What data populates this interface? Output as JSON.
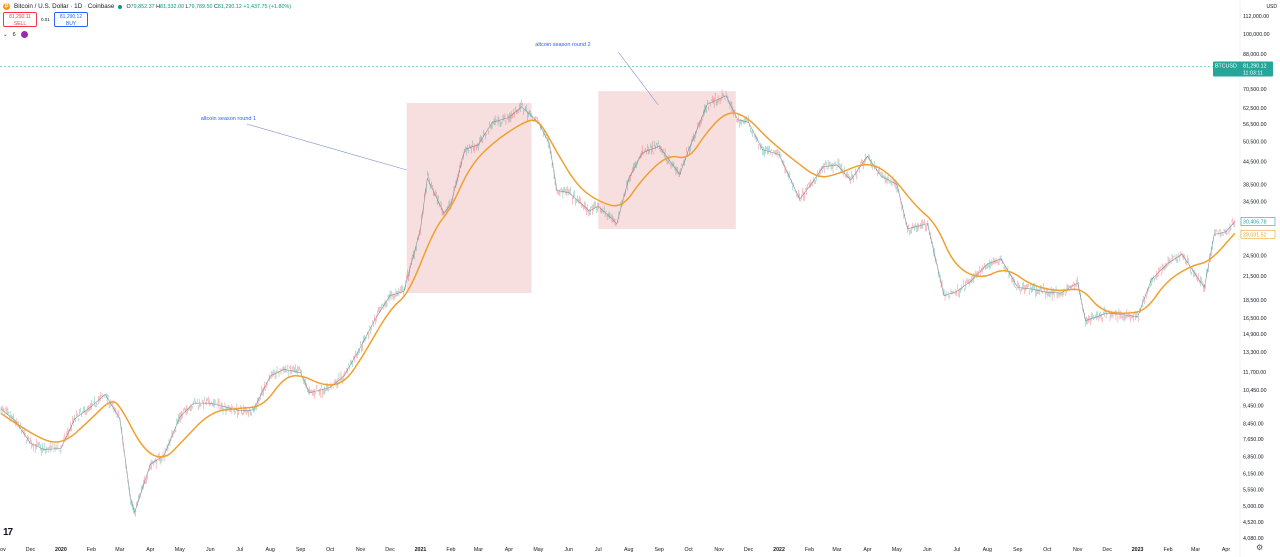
{
  "header": {
    "symbol_title": "Bitcoin / U.S. Dollar · 1D · Coinbase",
    "ohlc": [
      {
        "k": "O",
        "v": "79,852.37"
      },
      {
        "k": "H",
        "v": "81,332.00"
      },
      {
        "k": "L",
        "v": "79,789.50"
      },
      {
        "k": "C",
        "v": "81,290.12"
      }
    ],
    "change": "+1,437.75 (+1.80%)",
    "sell_price": "81,290.11",
    "sell_label": "SELL",
    "spread": "0.01",
    "buy_price": "81,290.12",
    "buy_label": "BUY",
    "indicator_count": "6",
    "currency": "USD"
  },
  "colors": {
    "up": "#089981",
    "down": "#f23645",
    "candle_gray": "#9aa0a6",
    "ma": "#f0a030",
    "zone": "#f2c9cc",
    "annotation_text": "#2962ff",
    "price_tag": "#26a69a"
  },
  "chart_data": {
    "type": "line",
    "scale": "log",
    "price_axis": {
      "ticks": [
        "112,000.00",
        "100,000.00",
        "88,000.00",
        "70,500.00",
        "62,500.00",
        "56,500.00",
        "50,500.00",
        "44,500.00",
        "38,500.00",
        "34,500.00",
        "30,500.00",
        "24,500.00",
        "21,500.00",
        "18,500.00",
        "16,500.00",
        "14,900.00",
        "13,300.00",
        "11,700.00",
        "10,450.00",
        "9,450.00",
        "8,450.00",
        "7,650.00",
        "6,850.00",
        "6,150.00",
        "5,550.00",
        "5,000.00",
        "4,520.00",
        "4,080.00"
      ],
      "tick_values": [
        112000,
        100000,
        88000,
        70500,
        62500,
        56500,
        50500,
        44500,
        38500,
        34500,
        30500,
        24500,
        21500,
        18500,
        16500,
        14900,
        13300,
        11700,
        10450,
        9450,
        8450,
        7650,
        6850,
        6150,
        5550,
        5000,
        4520,
        4080
      ],
      "range": [
        3950,
        118000
      ]
    },
    "time_axis": {
      "labels": [
        "Nov",
        "Dec",
        "2020",
        "Feb",
        "Mar",
        "Apr",
        "May",
        "Jun",
        "Jul",
        "Aug",
        "Sep",
        "Oct",
        "Nov",
        "Dec",
        "2021",
        "Feb",
        "Mar",
        "Apr",
        "May",
        "Jun",
        "Jul",
        "Aug",
        "Sep",
        "Oct",
        "Nov",
        "Dec",
        "2022",
        "Feb",
        "Mar",
        "Apr",
        "May",
        "Jun",
        "Jul",
        "Aug",
        "Sep",
        "Oct",
        "Nov",
        "Dec",
        "2023",
        "Feb",
        "Mar",
        "Apr"
      ],
      "bold_labels": [
        "2020",
        "2021",
        "2022",
        "2023"
      ],
      "label_dates": [
        "2019-11-01",
        "2019-12-01",
        "2020-01-01",
        "2020-02-01",
        "2020-03-01",
        "2020-04-01",
        "2020-05-01",
        "2020-06-01",
        "2020-07-01",
        "2020-08-01",
        "2020-09-01",
        "2020-10-01",
        "2020-11-01",
        "2020-12-01",
        "2021-01-01",
        "2021-02-01",
        "2021-03-01",
        "2021-04-01",
        "2021-05-01",
        "2021-06-01",
        "2021-07-01",
        "2021-08-01",
        "2021-09-01",
        "2021-10-01",
        "2021-11-01",
        "2021-12-01",
        "2022-01-01",
        "2022-02-01",
        "2022-03-01",
        "2022-04-01",
        "2022-05-01",
        "2022-06-01",
        "2022-07-01",
        "2022-08-01",
        "2022-09-01",
        "2022-10-01",
        "2022-11-01",
        "2022-12-01",
        "2023-01-01",
        "2023-02-01",
        "2023-03-01",
        "2023-04-01"
      ]
    },
    "price_series": {
      "name": "BTCUSD",
      "points": [
        [
          "2019-11-01",
          9250
        ],
        [
          "2019-11-15",
          8600
        ],
        [
          "2019-12-01",
          7450
        ],
        [
          "2019-12-15",
          7150
        ],
        [
          "2020-01-01",
          7200
        ],
        [
          "2020-01-15",
          8700
        ],
        [
          "2020-02-01",
          9400
        ],
        [
          "2020-02-15",
          10150
        ],
        [
          "2020-03-01",
          8700
        ],
        [
          "2020-03-12",
          5200
        ],
        [
          "2020-03-16",
          4800
        ],
        [
          "2020-04-01",
          6500
        ],
        [
          "2020-04-15",
          6900
        ],
        [
          "2020-05-01",
          8800
        ],
        [
          "2020-05-15",
          9600
        ],
        [
          "2020-06-01",
          9600
        ],
        [
          "2020-06-15",
          9400
        ],
        [
          "2020-07-01",
          9150
        ],
        [
          "2020-07-15",
          9200
        ],
        [
          "2020-08-01",
          11400
        ],
        [
          "2020-08-15",
          11900
        ],
        [
          "2020-09-01",
          11650
        ],
        [
          "2020-09-10",
          10250
        ],
        [
          "2020-10-01",
          10600
        ],
        [
          "2020-10-15",
          11400
        ],
        [
          "2020-11-01",
          13700
        ],
        [
          "2020-11-15",
          16200
        ],
        [
          "2020-12-01",
          19000
        ],
        [
          "2020-12-15",
          19500
        ],
        [
          "2021-01-01",
          29000
        ],
        [
          "2021-01-08",
          40000
        ],
        [
          "2021-01-25",
          32000
        ],
        [
          "2021-02-01",
          34000
        ],
        [
          "2021-02-15",
          48000
        ],
        [
          "2021-03-01",
          49500
        ],
        [
          "2021-03-15",
          57000
        ],
        [
          "2021-04-01",
          58800
        ],
        [
          "2021-04-14",
          63000
        ],
        [
          "2021-05-01",
          57000
        ],
        [
          "2021-05-12",
          50000
        ],
        [
          "2021-05-20",
          37000
        ],
        [
          "2021-06-01",
          36500
        ],
        [
          "2021-06-22",
          32500
        ],
        [
          "2021-07-01",
          33500
        ],
        [
          "2021-07-20",
          30000
        ],
        [
          "2021-08-01",
          40000
        ],
        [
          "2021-08-15",
          47000
        ],
        [
          "2021-09-01",
          49000
        ],
        [
          "2021-09-22",
          41000
        ],
        [
          "2021-10-01",
          48000
        ],
        [
          "2021-10-20",
          64000
        ],
        [
          "2021-11-08",
          67500
        ],
        [
          "2021-11-20",
          58000
        ],
        [
          "2021-12-01",
          57000
        ],
        [
          "2021-12-15",
          48000
        ],
        [
          "2022-01-01",
          46500
        ],
        [
          "2022-01-22",
          35000
        ],
        [
          "2022-02-01",
          38000
        ],
        [
          "2022-02-15",
          43000
        ],
        [
          "2022-03-01",
          43500
        ],
        [
          "2022-03-15",
          39500
        ],
        [
          "2022-04-01",
          46000
        ],
        [
          "2022-04-15",
          40500
        ],
        [
          "2022-05-01",
          38500
        ],
        [
          "2022-05-12",
          29000
        ],
        [
          "2022-06-01",
          30000
        ],
        [
          "2022-06-18",
          19000
        ],
        [
          "2022-07-01",
          19500
        ],
        [
          "2022-07-15",
          20800
        ],
        [
          "2022-08-01",
          23200
        ],
        [
          "2022-08-15",
          24000
        ],
        [
          "2022-09-01",
          20000
        ],
        [
          "2022-09-15",
          19800
        ],
        [
          "2022-10-01",
          19400
        ],
        [
          "2022-10-15",
          19300
        ],
        [
          "2022-11-01",
          20600
        ],
        [
          "2022-11-09",
          16200
        ],
        [
          "2022-12-01",
          17000
        ],
        [
          "2022-12-20",
          16800
        ],
        [
          "2023-01-01",
          16600
        ],
        [
          "2023-01-15",
          21000
        ],
        [
          "2023-02-01",
          23300
        ],
        [
          "2023-02-15",
          24700
        ],
        [
          "2023-03-10",
          20000
        ],
        [
          "2023-03-20",
          28000
        ],
        [
          "2023-04-01",
          28500
        ],
        [
          "2023-04-10",
          30400
        ]
      ]
    },
    "moving_average": {
      "points": [
        [
          "2019-11-01",
          9000
        ],
        [
          "2019-12-01",
          7900
        ],
        [
          "2020-01-01",
          7300
        ],
        [
          "2020-02-01",
          8700
        ],
        [
          "2020-02-20",
          9800
        ],
        [
          "2020-03-01",
          9500
        ],
        [
          "2020-03-25",
          7100
        ],
        [
          "2020-04-15",
          6700
        ],
        [
          "2020-05-01",
          7400
        ],
        [
          "2020-06-01",
          9100
        ],
        [
          "2020-07-01",
          9300
        ],
        [
          "2020-07-25",
          9400
        ],
        [
          "2020-08-15",
          11300
        ],
        [
          "2020-09-01",
          11500
        ],
        [
          "2020-09-25",
          10700
        ],
        [
          "2020-10-15",
          10900
        ],
        [
          "2020-11-01",
          12600
        ],
        [
          "2020-12-01",
          17500
        ],
        [
          "2020-12-20",
          19200
        ],
        [
          "2021-01-15",
          29000
        ],
        [
          "2021-02-01",
          33000
        ],
        [
          "2021-02-20",
          43000
        ],
        [
          "2021-03-15",
          50000
        ],
        [
          "2021-04-15",
          57000
        ],
        [
          "2021-05-01",
          58500
        ],
        [
          "2021-05-20",
          47000
        ],
        [
          "2021-06-10",
          38000
        ],
        [
          "2021-07-01",
          34500
        ],
        [
          "2021-07-25",
          33000
        ],
        [
          "2021-08-15",
          40000
        ],
        [
          "2021-09-10",
          46500
        ],
        [
          "2021-10-01",
          45000
        ],
        [
          "2021-10-20",
          54000
        ],
        [
          "2021-11-10",
          61500
        ],
        [
          "2021-11-30",
          59000
        ],
        [
          "2021-12-20",
          51500
        ],
        [
          "2022-01-20",
          44000
        ],
        [
          "2022-02-10",
          40000
        ],
        [
          "2022-03-01",
          41000
        ],
        [
          "2022-04-01",
          44500
        ],
        [
          "2022-04-25",
          41000
        ],
        [
          "2022-05-20",
          33500
        ],
        [
          "2022-06-10",
          30000
        ],
        [
          "2022-06-28",
          23000
        ],
        [
          "2022-07-25",
          21000
        ],
        [
          "2022-08-20",
          22800
        ],
        [
          "2022-09-15",
          20200
        ],
        [
          "2022-10-15",
          19500
        ],
        [
          "2022-11-05",
          20000
        ],
        [
          "2022-11-25",
          17200
        ],
        [
          "2022-12-20",
          16900
        ],
        [
          "2023-01-10",
          17300
        ],
        [
          "2023-01-30",
          20800
        ],
        [
          "2023-02-25",
          23000
        ],
        [
          "2023-03-15",
          23500
        ],
        [
          "2023-04-10",
          28200
        ]
      ]
    },
    "current_price": {
      "label": "BTCUSD",
      "value": "81,290.12",
      "countdown": "11:03:11",
      "price": 81290
    },
    "last_price_tag": {
      "value": "30,406.78",
      "price": 30407
    },
    "ma_price_tag": {
      "value": "28,031.52",
      "price": 28032
    },
    "highlight_zones": [
      {
        "start": "2020-12-18",
        "end": "2021-04-24",
        "low": 19300,
        "high": 64500
      },
      {
        "start": "2021-07-01",
        "end": "2021-11-18",
        "low": 29000,
        "high": 69500
      }
    ],
    "annotations": [
      {
        "text": "altcoin season round 1",
        "zone": 0
      },
      {
        "text": "altcoin season round 2",
        "zone": 1
      }
    ],
    "grid": false
  }
}
